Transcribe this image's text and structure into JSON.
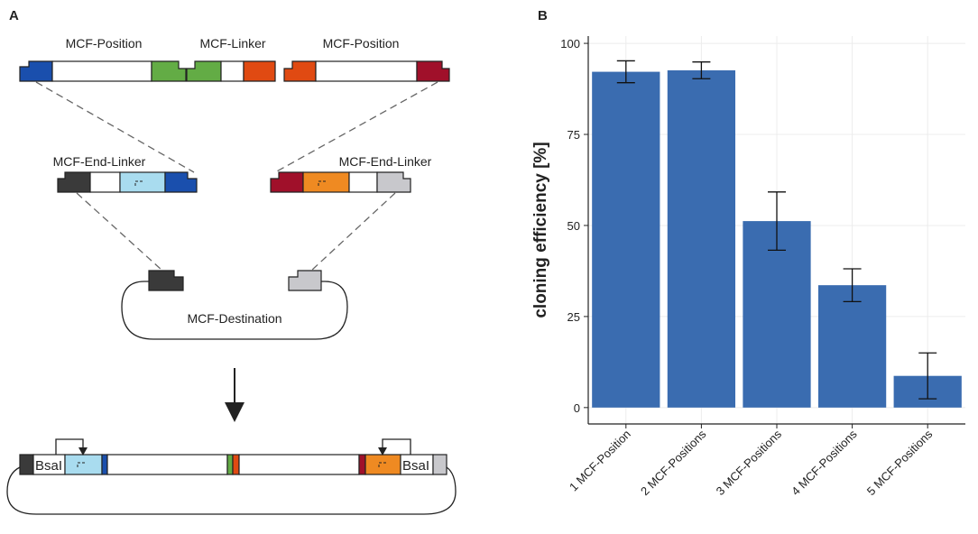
{
  "panels": {
    "a": "A",
    "b": "B"
  },
  "diagram": {
    "top_labels": [
      "MCF-Position",
      "MCF-Linker",
      "MCF-Position"
    ],
    "end_linker_labels": [
      "MCF-End-Linker",
      "MCF-End-Linker"
    ],
    "destination": "MCF-Destination",
    "site_labels": [
      "BsaI",
      "BsaI"
    ]
  },
  "chart_data": {
    "type": "bar",
    "categories": [
      "1 MCF-Position",
      "2 MCF-Positions",
      "3 MCF-Positions",
      "4 MCF-Positions",
      "5 MCF-Positions"
    ],
    "values": [
      92.2,
      92.6,
      51.2,
      33.6,
      8.7
    ],
    "errors": [
      3.0,
      2.3,
      8.0,
      4.5,
      6.3
    ],
    "color": "#3a6cb0",
    "ylabel": "cloning efficiency [%]",
    "ylim": [
      -4.5,
      102
    ],
    "yticks": [
      0,
      25,
      50,
      75,
      100
    ],
    "grid": true
  }
}
